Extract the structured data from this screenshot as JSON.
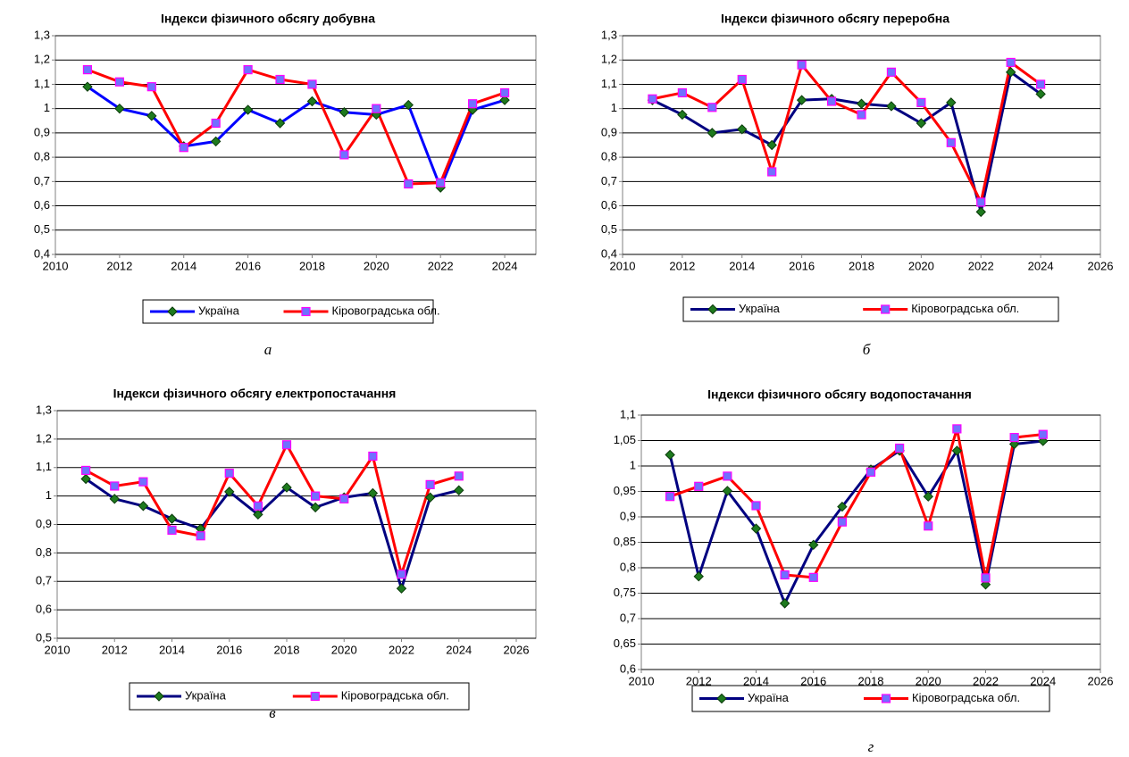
{
  "chart_data": [
    {
      "type": "line",
      "title": "Індекси фізичного обсягу добувна",
      "caption": "а",
      "x": [
        2011,
        2012,
        2013,
        2014,
        2015,
        2016,
        2017,
        2018,
        2019,
        2020,
        2021,
        2022,
        2023,
        2024
      ],
      "series": [
        {
          "name": "Україна",
          "color": "#0000ff",
          "marker": "diamond",
          "marker_color": "#1e7a1e",
          "values": [
            1.09,
            1.0,
            0.97,
            0.845,
            0.865,
            0.995,
            0.94,
            1.03,
            0.985,
            0.975,
            1.015,
            0.675,
            0.995,
            1.035
          ]
        },
        {
          "name": "Кіровоградська обл.",
          "color": "#ff0000",
          "marker": "square",
          "marker_color": "#7070ff",
          "values": [
            1.16,
            1.11,
            1.09,
            0.84,
            0.94,
            1.16,
            1.12,
            1.1,
            0.81,
            1.0,
            0.69,
            0.695,
            1.02,
            1.065
          ]
        }
      ],
      "xlim": [
        2010,
        2025
      ],
      "xticks": [
        2010,
        2012,
        2014,
        2016,
        2018,
        2020,
        2022,
        2024
      ],
      "ylim": [
        0.4,
        1.3
      ],
      "yticks": [
        {
          "value": 0.4,
          "label": "0,4"
        },
        {
          "value": 0.5,
          "label": "0,5"
        },
        {
          "value": 0.6,
          "label": "0,6"
        },
        {
          "value": 0.7,
          "label": "0,7"
        },
        {
          "value": 0.8,
          "label": "0,8"
        },
        {
          "value": 0.9,
          "label": "0,9"
        },
        1,
        {
          "value": 1.1,
          "label": "1,1"
        },
        {
          "value": 1.2,
          "label": "1,2"
        },
        {
          "value": 1.3,
          "label": "1,3"
        }
      ],
      "grid": true,
      "legend": "bottom"
    },
    {
      "type": "line",
      "title": "Індекси фізичного обсягу переробна",
      "caption": "б",
      "x": [
        2011,
        2012,
        2013,
        2014,
        2015,
        2016,
        2017,
        2018,
        2019,
        2020,
        2021,
        2022,
        2023,
        2024
      ],
      "series": [
        {
          "name": "Україна",
          "color": "#000080",
          "marker": "diamond",
          "marker_color": "#1e7a1e",
          "values": [
            1.035,
            0.975,
            0.9,
            0.915,
            0.85,
            1.035,
            1.04,
            1.02,
            1.01,
            0.94,
            1.025,
            0.575,
            1.15,
            1.06
          ]
        },
        {
          "name": "Кіровоградська обл.",
          "color": "#ff0000",
          "marker": "square",
          "marker_color": "#7070ff",
          "values": [
            1.04,
            1.065,
            1.005,
            1.12,
            0.74,
            1.18,
            1.03,
            0.975,
            1.15,
            1.025,
            0.86,
            0.615,
            1.19,
            1.1
          ]
        }
      ],
      "xlim": [
        2010,
        2026
      ],
      "xticks": [
        2010,
        2012,
        2014,
        2016,
        2018,
        2020,
        2022,
        2024,
        2026
      ],
      "ylim": [
        0.4,
        1.3
      ],
      "yticks": [
        {
          "value": 0.4,
          "label": "0,4"
        },
        {
          "value": 0.5,
          "label": "0,5"
        },
        {
          "value": 0.6,
          "label": "0,6"
        },
        {
          "value": 0.7,
          "label": "0,7"
        },
        {
          "value": 0.8,
          "label": "0,8"
        },
        {
          "value": 0.9,
          "label": "0,9"
        },
        1,
        {
          "value": 1.1,
          "label": "1,1"
        },
        {
          "value": 1.2,
          "label": "1,2"
        },
        {
          "value": 1.3,
          "label": "1,3"
        }
      ],
      "grid": true,
      "legend": "bottom"
    },
    {
      "type": "line",
      "title": "Індекси фізичного обсягу електропостачання",
      "caption": "в",
      "x": [
        2011,
        2012,
        2013,
        2014,
        2015,
        2016,
        2017,
        2018,
        2019,
        2020,
        2021,
        2022,
        2023,
        2024
      ],
      "series": [
        {
          "name": "Україна",
          "color": "#000080",
          "marker": "diamond",
          "marker_color": "#1e7a1e",
          "values": [
            1.06,
            0.99,
            0.965,
            0.92,
            0.885,
            1.015,
            0.935,
            1.03,
            0.96,
            0.995,
            1.01,
            0.675,
            0.995,
            1.02
          ]
        },
        {
          "name": "Кіровоградська обл.",
          "color": "#ff0000",
          "marker": "square",
          "marker_color": "#7070ff",
          "values": [
            1.09,
            1.035,
            1.05,
            0.88,
            0.86,
            1.08,
            0.965,
            1.18,
            1.0,
            0.99,
            1.14,
            0.725,
            1.04,
            1.07
          ]
        }
      ],
      "xlim": [
        2010,
        2026
      ],
      "xticks": [
        2010,
        2012,
        2014,
        2016,
        2018,
        2020,
        2022,
        2024,
        2026
      ],
      "ylim": [
        0.5,
        1.3
      ],
      "yticks": [
        {
          "value": 0.5,
          "label": "0,5"
        },
        {
          "value": 0.6,
          "label": "0,6"
        },
        {
          "value": 0.7,
          "label": "0,7"
        },
        {
          "value": 0.8,
          "label": "0,8"
        },
        {
          "value": 0.9,
          "label": "0,9"
        },
        1,
        {
          "value": 1.1,
          "label": "1,1"
        },
        {
          "value": 1.2,
          "label": "1,2"
        },
        {
          "value": 1.3,
          "label": "1,3"
        }
      ],
      "grid": true,
      "legend": "bottom"
    },
    {
      "type": "line",
      "title": "Індекси фізичного обсягу водопостачання",
      "caption": "г",
      "x": [
        2011,
        2012,
        2013,
        2014,
        2015,
        2016,
        2017,
        2018,
        2019,
        2020,
        2021,
        2022,
        2023,
        2024
      ],
      "series": [
        {
          "name": "Україна",
          "color": "#000080",
          "marker": "diamond",
          "marker_color": "#1e7a1e",
          "values": [
            1.022,
            0.783,
            0.951,
            0.877,
            0.73,
            0.845,
            0.92,
            0.993,
            1.03,
            0.94,
            1.03,
            0.767,
            1.043,
            1.049
          ]
        },
        {
          "name": "Кіровоградська обл.",
          "color": "#ff0000",
          "marker": "square",
          "marker_color": "#7070ff",
          "values": [
            0.94,
            0.96,
            0.98,
            0.922,
            0.786,
            0.781,
            0.89,
            0.988,
            1.035,
            0.882,
            1.073,
            0.78,
            1.056,
            1.062
          ]
        }
      ],
      "xlim": [
        2010,
        2026
      ],
      "xticks": [
        2010,
        2012,
        2014,
        2016,
        2018,
        2020,
        2022,
        2024,
        2026
      ],
      "ylim": [
        0.6,
        1.1
      ],
      "yticks": [
        {
          "value": 0.6,
          "label": "0,6"
        },
        {
          "value": 0.65,
          "label": "0,65"
        },
        {
          "value": 0.7,
          "label": "0,7"
        },
        {
          "value": 0.75,
          "label": "0,75"
        },
        {
          "value": 0.8,
          "label": "0,8"
        },
        {
          "value": 0.85,
          "label": "0,85"
        },
        {
          "value": 0.9,
          "label": "0,9"
        },
        {
          "value": 0.95,
          "label": "0,95"
        },
        1,
        {
          "value": 1.05,
          "label": "1,05"
        },
        {
          "value": 1.1,
          "label": "1,1"
        }
      ],
      "grid": true,
      "legend": "bottom"
    }
  ]
}
